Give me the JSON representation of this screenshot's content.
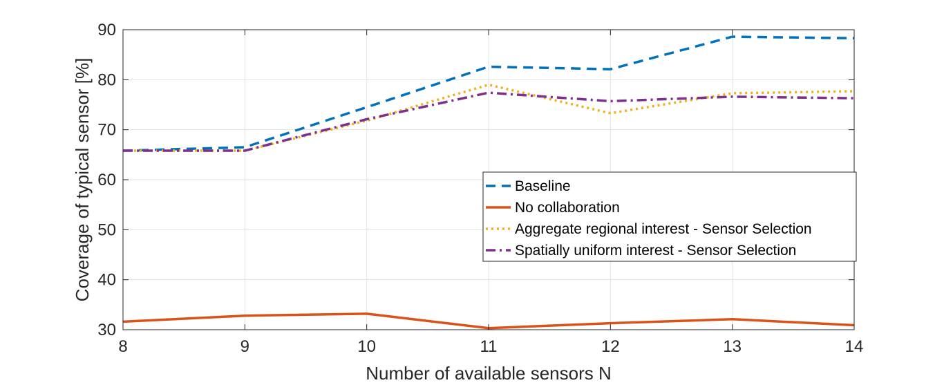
{
  "chart_data": {
    "type": "line",
    "xlabel": "Number of available sensors N",
    "ylabel": "Coverage of typical sensor [%]",
    "xlim": [
      8,
      14
    ],
    "ylim": [
      30,
      90
    ],
    "x_ticks": [
      "8",
      "9",
      "10",
      "11",
      "12",
      "13",
      "14"
    ],
    "y_ticks": [
      "30",
      "40",
      "50",
      "60",
      "70",
      "80",
      "90"
    ],
    "grid": true,
    "legend_position": "right",
    "x": [
      8,
      9,
      10,
      11,
      12,
      13,
      14
    ],
    "series": [
      {
        "name": "Baseline",
        "values": [
          65.8,
          66.5,
          74.5,
          82.6,
          82.1,
          88.6,
          88.3
        ],
        "color": "#0072BD",
        "dash": "dashed"
      },
      {
        "name": "No collaboration",
        "values": [
          31.6,
          32.8,
          33.2,
          30.3,
          31.3,
          32.1,
          30.9
        ],
        "color": "#D95319",
        "dash": "solid"
      },
      {
        "name": "Aggregate regional interest - Sensor Selection",
        "values": [
          65.8,
          65.8,
          71.8,
          79.0,
          73.3,
          77.3,
          77.7
        ],
        "color": "#EDB120",
        "dash": "dotted"
      },
      {
        "name": "Spatially uniform interest - Sensor Selection",
        "values": [
          65.8,
          65.8,
          72.1,
          77.4,
          75.7,
          76.6,
          76.3
        ],
        "color": "#7E2F8E",
        "dash": "dashdot"
      }
    ]
  }
}
